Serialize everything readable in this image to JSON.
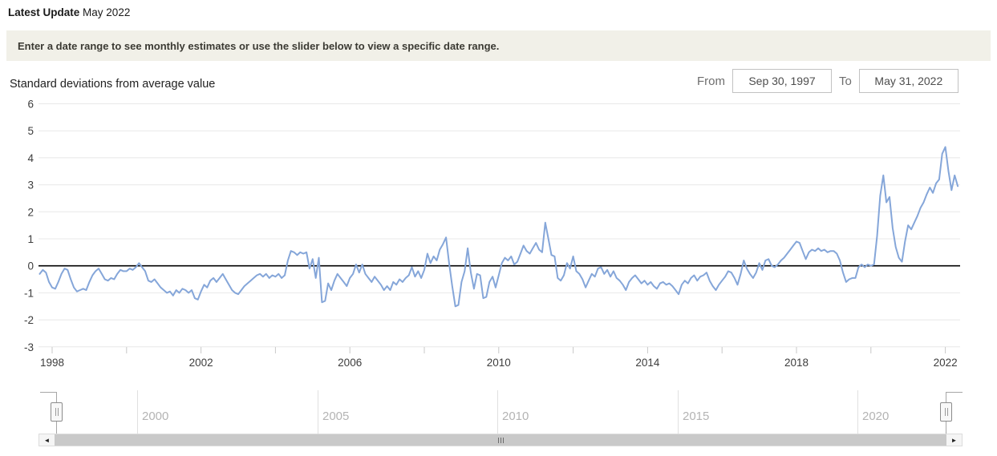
{
  "header": {
    "latest_update_label": "Latest Update",
    "latest_update_value": "May 2022"
  },
  "banner": {
    "text": "Enter a date range to see monthly estimates or use the slider below to view a specific date range."
  },
  "controls": {
    "from_label": "From",
    "from_value": "Sep 30, 1997",
    "to_label": "To",
    "to_value": "May 31, 2022"
  },
  "colors": {
    "line": "#85a6d9",
    "zero_line": "#000000",
    "gridline": "#e8e8e8",
    "minor_tick": "#c8c8c8",
    "axis_text": "#3d3d3d",
    "banner_bg": "#f1f0e8",
    "slider_label": "#b4b4b4",
    "scrollbar_thumb": "#c9c9c9"
  },
  "chart_data": {
    "type": "line",
    "title": "Standard deviations from average value",
    "xlabel": "",
    "ylabel": "Standard deviations from average value",
    "ylim": [
      -3,
      6
    ],
    "yticks": [
      6,
      5,
      4,
      3,
      2,
      1,
      0,
      -1,
      -2,
      -3
    ],
    "xtick_label_years": [
      1998,
      2002,
      2006,
      2010,
      2014,
      2018,
      2022
    ],
    "xtick_minor_years": [
      1998,
      2000,
      2002,
      2004,
      2006,
      2008,
      2010,
      2012,
      2014,
      2016,
      2018,
      2020,
      2022
    ],
    "grid": "horizontal-only",
    "zero_baseline": true,
    "legend": "none",
    "series": [
      {
        "name": "Monthly standard deviations from average value",
        "start": "1997-09",
        "frequency": "monthly",
        "values": [
          -0.3,
          -0.15,
          -0.25,
          -0.6,
          -0.8,
          -0.85,
          -0.6,
          -0.3,
          -0.1,
          -0.15,
          -0.5,
          -0.8,
          -0.95,
          -0.9,
          -0.85,
          -0.9,
          -0.6,
          -0.35,
          -0.2,
          -0.1,
          -0.3,
          -0.5,
          -0.55,
          -0.45,
          -0.5,
          -0.3,
          -0.15,
          -0.2,
          -0.2,
          -0.1,
          -0.15,
          -0.05,
          0.1,
          -0.05,
          -0.2,
          -0.55,
          -0.6,
          -0.5,
          -0.65,
          -0.8,
          -0.9,
          -1.0,
          -0.95,
          -1.1,
          -0.9,
          -1.0,
          -0.85,
          -0.9,
          -1.0,
          -0.9,
          -1.2,
          -1.25,
          -0.95,
          -0.7,
          -0.8,
          -0.55,
          -0.45,
          -0.6,
          -0.45,
          -0.3,
          -0.5,
          -0.7,
          -0.9,
          -1.0,
          -1.05,
          -0.9,
          -0.75,
          -0.65,
          -0.55,
          -0.45,
          -0.35,
          -0.3,
          -0.4,
          -0.3,
          -0.45,
          -0.35,
          -0.4,
          -0.3,
          -0.45,
          -0.35,
          0.2,
          0.55,
          0.5,
          0.4,
          0.5,
          0.45,
          0.5,
          -0.1,
          0.25,
          -0.45,
          0.3,
          -1.35,
          -1.3,
          -0.65,
          -0.9,
          -0.55,
          -0.3,
          -0.45,
          -0.6,
          -0.75,
          -0.45,
          -0.3,
          0.05,
          -0.25,
          0.05,
          -0.3,
          -0.45,
          -0.6,
          -0.4,
          -0.55,
          -0.7,
          -0.9,
          -0.75,
          -0.9,
          -0.6,
          -0.7,
          -0.5,
          -0.6,
          -0.45,
          -0.35,
          -0.05,
          -0.4,
          -0.2,
          -0.45,
          -0.15,
          0.45,
          0.1,
          0.35,
          0.2,
          0.6,
          0.8,
          1.05,
          0.1,
          -0.75,
          -1.5,
          -1.45,
          -0.6,
          -0.2,
          0.65,
          -0.25,
          -0.85,
          -0.3,
          -0.35,
          -1.2,
          -1.15,
          -0.6,
          -0.4,
          -0.8,
          -0.35,
          0.1,
          0.3,
          0.2,
          0.35,
          0.05,
          0.15,
          0.45,
          0.75,
          0.55,
          0.45,
          0.65,
          0.85,
          0.6,
          0.5,
          1.6,
          1.0,
          0.4,
          0.35,
          -0.45,
          -0.55,
          -0.35,
          0.1,
          -0.1,
          0.35,
          -0.2,
          -0.3,
          -0.5,
          -0.8,
          -0.55,
          -0.3,
          -0.4,
          -0.1,
          -0.05,
          -0.3,
          -0.15,
          -0.4,
          -0.2,
          -0.45,
          -0.55,
          -0.7,
          -0.9,
          -0.6,
          -0.45,
          -0.35,
          -0.5,
          -0.65,
          -0.55,
          -0.7,
          -0.6,
          -0.75,
          -0.85,
          -0.65,
          -0.6,
          -0.7,
          -0.65,
          -0.75,
          -0.9,
          -1.05,
          -0.7,
          -0.55,
          -0.65,
          -0.45,
          -0.35,
          -0.55,
          -0.4,
          -0.35,
          -0.25,
          -0.55,
          -0.75,
          -0.9,
          -0.7,
          -0.55,
          -0.4,
          -0.2,
          -0.25,
          -0.45,
          -0.7,
          -0.3,
          0.2,
          -0.1,
          -0.3,
          -0.45,
          -0.25,
          0.1,
          -0.15,
          0.2,
          0.25,
          0.0,
          -0.05,
          0.05,
          0.2,
          0.3,
          0.45,
          0.6,
          0.75,
          0.9,
          0.85,
          0.55,
          0.25,
          0.5,
          0.6,
          0.55,
          0.65,
          0.55,
          0.6,
          0.5,
          0.55,
          0.55,
          0.45,
          0.2,
          -0.25,
          -0.6,
          -0.5,
          -0.45,
          -0.45,
          -0.05,
          0.05,
          -0.05,
          0.05,
          0.0,
          0.05,
          1.1,
          2.6,
          3.35,
          2.35,
          2.55,
          1.4,
          0.7,
          0.3,
          0.15,
          0.9,
          1.5,
          1.35,
          1.6,
          1.85,
          2.15,
          2.35,
          2.65,
          2.9,
          2.7,
          3.05,
          3.2,
          4.15,
          4.4,
          3.5,
          2.8,
          3.35,
          2.95
        ]
      }
    ]
  },
  "slider": {
    "tick_labels": [
      "2000",
      "2005",
      "2010",
      "2015",
      "2020"
    ],
    "tick_years": [
      2000,
      2005,
      2010,
      2015,
      2020
    ],
    "range_start_year": 1997.75,
    "range_end_year": 2022.45
  },
  "scrollbar": {
    "left_arrow": "◄",
    "right_arrow": "►"
  }
}
